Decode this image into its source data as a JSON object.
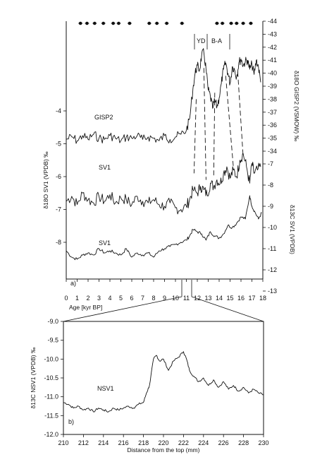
{
  "chart_data": [
    {
      "type": "line",
      "panel": "a)",
      "x_axis": {
        "label": "Age [kyr BP]",
        "range": [
          0,
          18
        ],
        "ticks": [
          "0",
          "1",
          "2",
          "3",
          "4",
          "5",
          "6",
          "7",
          "8",
          "9",
          "10",
          "11",
          "12",
          "13",
          "14",
          "15",
          "16",
          "17",
          "18"
        ]
      },
      "y_axis_left": {
        "label": "δ18O SV1   (VPDB)   ‰",
        "ticks": [
          "-4",
          "-5",
          "-6",
          "-7",
          "-8"
        ]
      },
      "y_axis_right_top": {
        "label": "δ18O GISP2   (VSMOW)   ‰",
        "range": [
          -44,
          -34
        ],
        "ticks": [
          "-44",
          "-43",
          "-42",
          "-41",
          "-40",
          "-39",
          "-38",
          "-37",
          "-36",
          "-35",
          "-34"
        ]
      },
      "y_axis_right_bottom": {
        "label": "δ13C SV1   (VPDB)",
        "range": [
          -13,
          -7
        ],
        "ticks": [
          "-7",
          "-8",
          "-9",
          "-10",
          "-11",
          "-12",
          "-13"
        ]
      },
      "series": [
        {
          "name": "GISP2",
          "x": [
            0,
            0.5,
            1,
            1.5,
            2,
            2.5,
            3,
            3.5,
            4,
            4.5,
            5,
            5.5,
            6,
            6.5,
            7,
            7.5,
            8,
            8.5,
            9,
            9.5,
            10,
            10.5,
            11,
            11.3,
            11.6,
            11.8,
            12,
            12.2,
            12.4,
            12.6,
            12.8,
            13,
            13.2,
            13.4,
            13.6,
            13.8,
            14,
            14.2,
            14.4,
            14.6,
            14.8,
            15,
            15.2,
            15.4,
            15.6,
            15.8,
            16,
            16.2,
            16.4,
            16.6,
            16.8,
            17,
            17.2,
            17.4,
            17.6,
            17.8
          ],
          "y": [
            -34.9,
            -35.1,
            -34.8,
            -35.2,
            -34.9,
            -35.3,
            -35.0,
            -34.9,
            -35.2,
            -35.0,
            -34.8,
            -35.1,
            -35.0,
            -35.2,
            -34.9,
            -35.1,
            -35.0,
            -34.8,
            -35.2,
            -34.9,
            -35.1,
            -35.3,
            -35.6,
            -36.5,
            -38.8,
            -40.0,
            -40.6,
            -40.2,
            -41.4,
            -41.6,
            -40.3,
            -38.7,
            -38.2,
            -37.3,
            -37.9,
            -37.4,
            -38.1,
            -39.2,
            -40.3,
            -40.8,
            -40.0,
            -39.2,
            -40.5,
            -40.3,
            -39.7,
            -40.8,
            -41.1,
            -40.6,
            -40.9,
            -41.0,
            -40.3,
            -40.7,
            -39.9,
            -41.0,
            -40.5,
            -39.3
          ]
        },
        {
          "name": "SV1",
          "x": [
            0,
            0.5,
            1,
            1.5,
            2,
            2.5,
            3,
            3.5,
            4,
            4.5,
            5,
            5.5,
            6,
            6.5,
            7,
            7.5,
            8,
            8.5,
            9,
            9.5,
            10,
            10.5,
            11,
            11.3,
            11.6,
            12,
            12.3,
            12.6,
            12.9,
            13.2,
            13.5,
            13.8,
            14.1,
            14.4,
            14.7,
            15,
            15.3,
            15.6,
            15.9,
            16.2,
            16.5,
            16.8,
            17,
            17.2,
            17.5,
            17.8
          ],
          "y": [
            -6.75,
            -6.6,
            -6.85,
            -6.5,
            -6.7,
            -6.8,
            -6.6,
            -6.75,
            -6.55,
            -6.8,
            -6.65,
            -6.7,
            -6.85,
            -6.6,
            -6.75,
            -6.8,
            -6.7,
            -6.85,
            -6.9,
            -6.8,
            -6.95,
            -7.0,
            -6.9,
            -6.7,
            -6.4,
            -6.5,
            -6.3,
            -6.4,
            -6.55,
            -6.2,
            -6.3,
            -6.1,
            -6.2,
            -5.9,
            -5.7,
            -6.05,
            -5.8,
            -6.0,
            -5.5,
            -5.3,
            -5.7,
            -6.2,
            -5.6,
            -5.9,
            -5.8,
            -5.7
          ]
        },
        {
          "name": "SV1",
          "x": [
            0,
            0.5,
            1,
            1.5,
            2,
            2.5,
            3,
            3.5,
            4,
            4.5,
            5,
            5.5,
            6,
            6.5,
            7,
            7.5,
            8,
            8.5,
            9,
            9.5,
            10,
            10.5,
            11,
            11.3,
            11.6,
            12,
            12.4,
            12.8,
            13.2,
            13.6,
            14,
            14.4,
            14.8,
            15.2,
            15.6,
            16,
            16.4,
            16.8,
            17,
            17.3,
            17.6,
            17.9
          ],
          "y": [
            -11.1,
            -11.4,
            -11.5,
            -11.3,
            -11.2,
            -11.3,
            -11.0,
            -11.2,
            -11.1,
            -11.2,
            -11.3,
            -11.0,
            -11.4,
            -11.2,
            -11.3,
            -11.2,
            -11.4,
            -11.1,
            -11.0,
            -10.9,
            -10.8,
            -10.7,
            -10.6,
            -10.4,
            -10.1,
            -10.2,
            -10.3,
            -10.6,
            -10.2,
            -10.4,
            -10.5,
            -10.3,
            -9.9,
            -10.0,
            -9.8,
            -9.5,
            -9.6,
            -8.5,
            -9.0,
            -9.3,
            -9.6,
            -9.3
          ]
        }
      ],
      "annotations": {
        "yd": "YD",
        "ba": "B-A"
      },
      "dates_top": [
        1.3,
        1.9,
        2.6,
        3.4,
        4.3,
        4.8,
        5.8,
        7.6,
        8.3,
        9.2,
        10.6,
        13.8,
        14.3,
        15.1,
        15.6,
        16.2,
        16.9
      ]
    },
    {
      "type": "line",
      "panel": "b)",
      "series": [
        {
          "name": "NSV1",
          "x": [
            210,
            210.5,
            211,
            211.5,
            212,
            212.5,
            213,
            213.5,
            214,
            214.5,
            215,
            215.5,
            216,
            216.5,
            217,
            217.5,
            218,
            218.3,
            218.6,
            219,
            219.3,
            219.6,
            220,
            220.5,
            221,
            221.5,
            222,
            222.3,
            222.6,
            223,
            223.5,
            224,
            224.5,
            225,
            225.5,
            226,
            226.5,
            227,
            227.5,
            228,
            228.5,
            229,
            229.5,
            230
          ],
          "y": [
            -11.15,
            -11.2,
            -11.3,
            -11.25,
            -11.35,
            -11.3,
            -11.4,
            -11.3,
            -11.35,
            -11.4,
            -11.3,
            -11.35,
            -11.3,
            -11.25,
            -11.3,
            -11.2,
            -11.15,
            -10.9,
            -10.7,
            -10.0,
            -9.9,
            -10.05,
            -10.0,
            -10.3,
            -10.05,
            -9.95,
            -9.8,
            -10.0,
            -10.3,
            -10.45,
            -10.6,
            -10.5,
            -10.7,
            -10.55,
            -10.75,
            -10.6,
            -10.8,
            -10.7,
            -10.85,
            -10.75,
            -10.9,
            -10.8,
            -10.9,
            -10.95
          ]
        }
      ],
      "x_axis": {
        "label": "Distance from the top (mm)",
        "range": [
          210,
          230
        ],
        "ticks": [
          "210",
          "212",
          "214",
          "216",
          "218",
          "220",
          "222",
          "224",
          "226",
          "228",
          "230"
        ]
      },
      "y_axis": {
        "label": "δ13C  NSV1   (VPDB)  ‰",
        "range": [
          -12,
          -9
        ],
        "ticks": [
          "-9.0",
          "-9.5",
          "-10.0",
          "-10.5",
          "-11.0",
          "-11.5",
          "-12.0"
        ]
      }
    }
  ]
}
